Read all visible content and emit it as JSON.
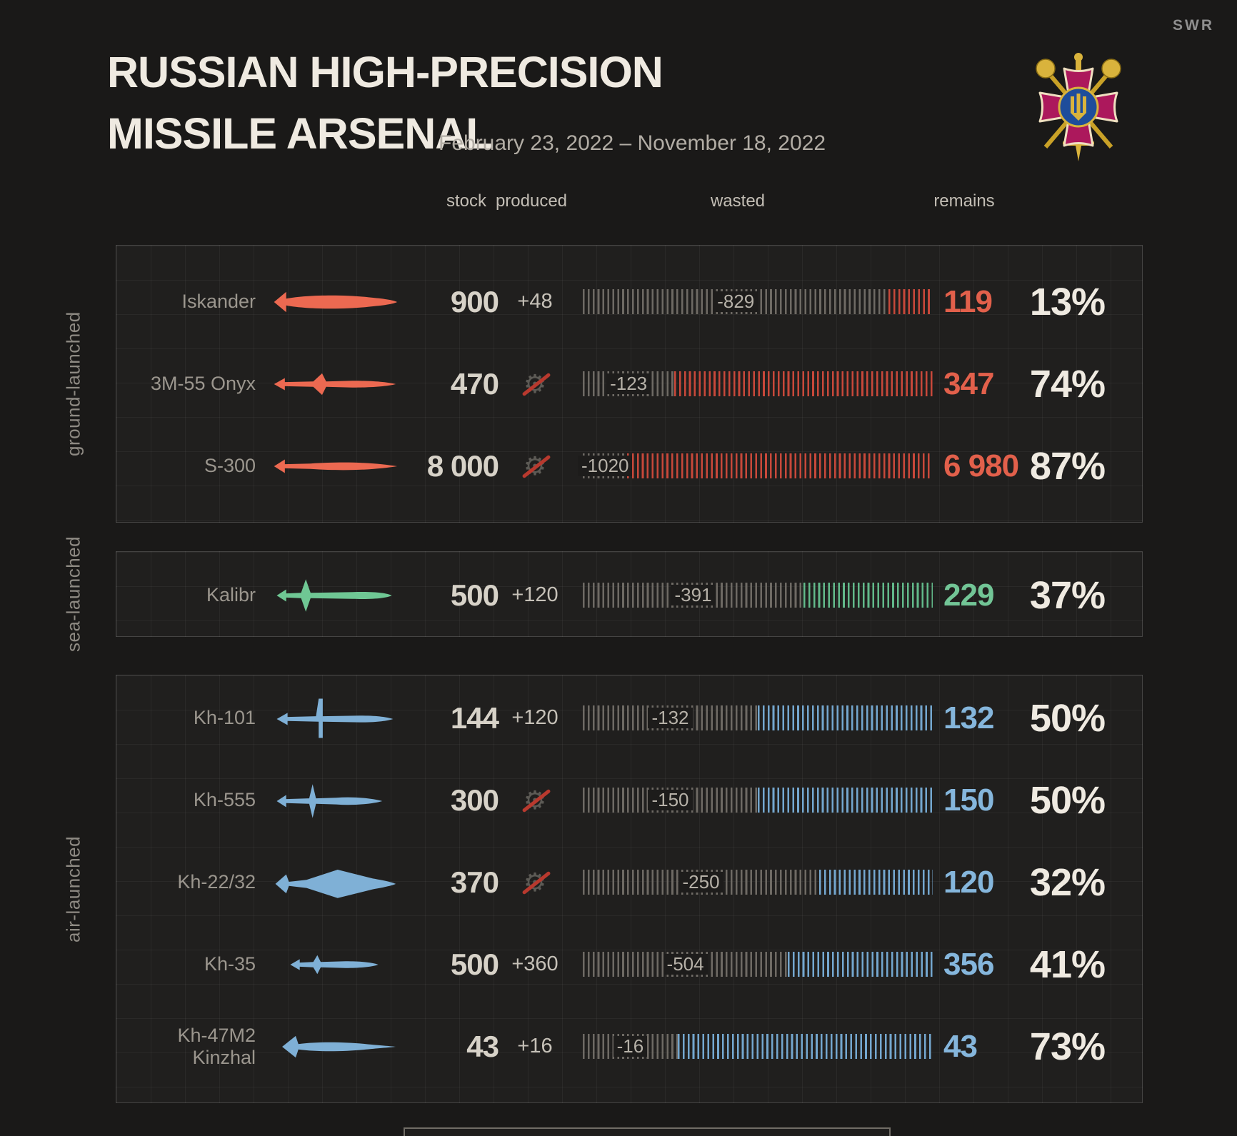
{
  "brand": "SWR",
  "header": {
    "title_line1": "RUSSIAN HIGH-PRECISION",
    "title_line2": "MISSILE ARSENAL",
    "date_range": "February 23, 2022 – November 18, 2022"
  },
  "columns": {
    "stock": "stock",
    "produced": "produced",
    "wasted": "wasted",
    "remains": "remains"
  },
  "chart_data": {
    "type": "bar",
    "title": "Russian high-precision missile arsenal",
    "period": "February 23, 2022 – November 18, 2022",
    "bar_meaning": "each bar shows full stock (initial + produced) split proportionally into wasted (grey hatch) and remains (colored hatch)",
    "sections": [
      {
        "label": "ground-launched",
        "icon_color": "#ec6951",
        "bar_color": "#c8483a",
        "number_color": "#e2604b",
        "rows": [
          {
            "name_lines": [
              "Iskander"
            ],
            "icon": "iskander-missile-icon",
            "stock": 900,
            "stock_label": "900",
            "produced": 48,
            "produced_label": "+48",
            "no_production": false,
            "wasted": 829,
            "wasted_label": "-829",
            "remains": 119,
            "remains_label": "119",
            "percent": 13,
            "percent_label": "13%"
          },
          {
            "name_lines": [
              "3M-55 Onyx"
            ],
            "icon": "onyx-missile-icon",
            "stock": 470,
            "stock_label": "470",
            "produced": null,
            "produced_label": null,
            "no_production": true,
            "wasted": 123,
            "wasted_label": "-123",
            "remains": 347,
            "remains_label": "347",
            "percent": 74,
            "percent_label": "74%"
          },
          {
            "name_lines": [
              "S-300"
            ],
            "icon": "s300-missile-icon",
            "stock": 8000,
            "stock_label": "8 000",
            "produced": null,
            "produced_label": null,
            "no_production": true,
            "wasted": 1020,
            "wasted_label": "-1020",
            "remains": 6980,
            "remains_label": "6 980",
            "percent": 87,
            "percent_label": "87%"
          }
        ]
      },
      {
        "label": "sea-launched",
        "icon_color": "#6fc794",
        "bar_color": "#62b98a",
        "number_color": "#72c596",
        "rows": [
          {
            "name_lines": [
              "Kalibr"
            ],
            "icon": "kalibr-missile-icon",
            "stock": 500,
            "stock_label": "500",
            "produced": 120,
            "produced_label": "+120",
            "no_production": false,
            "wasted": 391,
            "wasted_label": "-391",
            "remains": 229,
            "remains_label": "229",
            "percent": 37,
            "percent_label": "37%"
          }
        ]
      },
      {
        "label": "air-launched",
        "icon_color": "#7fb0d6",
        "bar_color": "#74a7cf",
        "number_color": "#85b6dc",
        "rows": [
          {
            "name_lines": [
              "Kh-101"
            ],
            "icon": "kh101-missile-icon",
            "stock": 144,
            "stock_label": "144",
            "produced": 120,
            "produced_label": "+120",
            "no_production": false,
            "wasted": 132,
            "wasted_label": "-132",
            "remains": 132,
            "remains_label": "132",
            "percent": 50,
            "percent_label": "50%"
          },
          {
            "name_lines": [
              "Kh-555"
            ],
            "icon": "kh555-missile-icon",
            "stock": 300,
            "stock_label": "300",
            "produced": null,
            "produced_label": null,
            "no_production": true,
            "wasted": 150,
            "wasted_label": "-150",
            "remains": 150,
            "remains_label": "150",
            "percent": 50,
            "percent_label": "50%"
          },
          {
            "name_lines": [
              "Kh-22/32"
            ],
            "icon": "kh2232-missile-icon",
            "stock": 370,
            "stock_label": "370",
            "produced": null,
            "produced_label": null,
            "no_production": true,
            "wasted": 250,
            "wasted_label": "-250",
            "remains": 120,
            "remains_label": "120",
            "percent": 32,
            "percent_label": "32%"
          },
          {
            "name_lines": [
              "Kh-35"
            ],
            "icon": "kh35-missile-icon",
            "stock": 500,
            "stock_label": "500",
            "produced": 360,
            "produced_label": "+360",
            "no_production": false,
            "wasted": 504,
            "wasted_label": "-504",
            "remains": 356,
            "remains_label": "356",
            "percent": 41,
            "percent_label": "41%"
          },
          {
            "name_lines": [
              "Kh-47M2",
              "Kinzhal"
            ],
            "icon": "kinzhal-missile-icon",
            "stock": 43,
            "stock_label": "43",
            "produced": 16,
            "produced_label": "+16",
            "no_production": false,
            "wasted": 16,
            "wasted_label": "-16",
            "remains": 43,
            "remains_label": "43",
            "percent": 73,
            "percent_label": "73%"
          }
        ]
      }
    ]
  }
}
